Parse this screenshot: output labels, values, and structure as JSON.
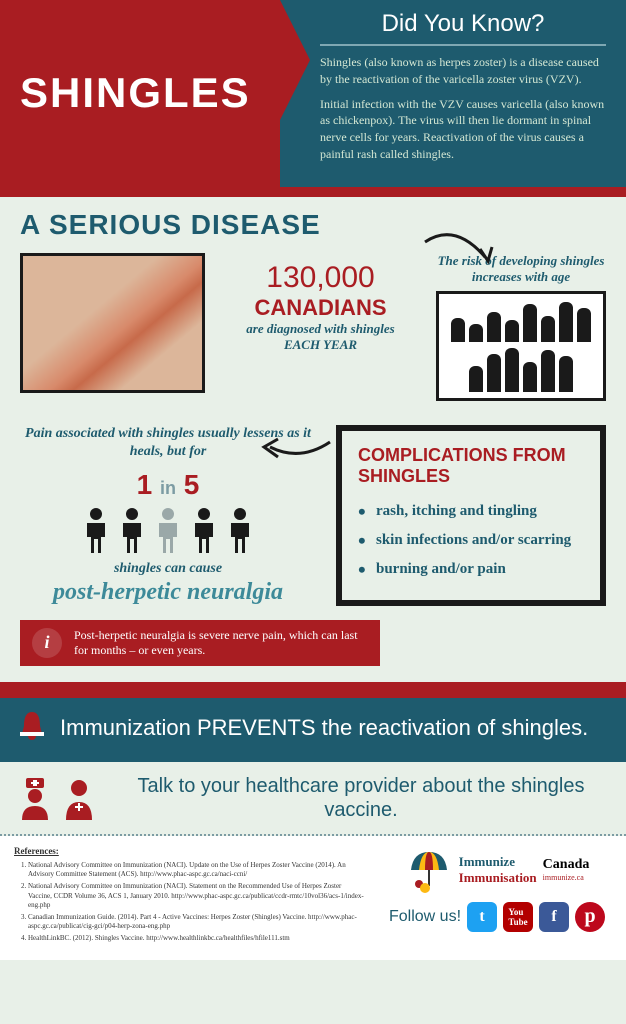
{
  "header": {
    "title": "SHINGLES",
    "did_you_know": "Did You Know?",
    "para1": "Shingles (also known as herpes zoster) is a disease caused by the reactivation of the varicella zoster virus (VZV).",
    "para2": "Initial infection with the VZV causes varicella (also known as chickenpox). The virus will then lie dormant in spinal nerve cells for years. Reactivation of the virus causes a painful rash called shingles."
  },
  "serious": {
    "title": "A Serious Disease",
    "stat_num": "130,000",
    "stat_canadians": "CANADIANS",
    "stat_sub1": "are diagnosed with shingles",
    "stat_sub2": "EACH YEAR",
    "risk_text": "The risk of developing shingles increases with age",
    "pain_text": "Pain associated with shingles usually lessens as it heals, but for",
    "one": "1",
    "in": "in",
    "five": "5",
    "cause": "shingles can cause",
    "neuralgia": "post-herpetic neuralgia",
    "info": "Post-herpetic neuralgia is severe nerve pain, which can last for months – or even years."
  },
  "complications": {
    "title": "Complications from Shingles",
    "items": [
      "rash, itching and tingling",
      "skin infections and/or scarring",
      "burning and/or pain"
    ]
  },
  "immun": "Immunization PREVENTS the reactivation of shingles.",
  "talk": "Talk to your healthcare provider about the shingles vaccine.",
  "refs": {
    "title": "References:",
    "items": [
      "National Advisory Committee on Immunization (NACI). Update on the Use of Herpes Zoster Vaccine (2014). An Advisory Committee Statement (ACS). http://www.phac-aspc.gc.ca/naci-ccni/",
      "National Advisory Committee on Immunization (NACI). Statement on the Recommended Use of Herpes Zoster Vaccine, CCDR Volume 36, ACS 1, January 2010. http://www.phac-aspc.gc.ca/publicat/ccdr-rmtc/10vol36/acs-1/index-eng.php",
      "Canadian Immunization Guide. (2014). Part 4 - Active Vaccines: Herpes Zoster (Shingles) Vaccine. http://www.phac-aspc.gc.ca/publicat/cig-gci/p04-herp-zona-eng.php",
      "HealthLinkBC. (2012). Shingles Vaccine. http://www.healthlinkbc.ca/healthfiles/hfile111.stm"
    ]
  },
  "footer": {
    "immunize_en": "Immunize",
    "immunize_fr": "Immunisation",
    "canada": "Canada",
    "url": "immunize.ca",
    "follow": "Follow us!"
  },
  "colors": {
    "red": "#a91d22",
    "teal": "#1e5b6e",
    "teal_light": "#3d8a99",
    "bg": "#e8f0e8",
    "dark": "#1a1a1a"
  },
  "silhouette_heights": [
    24,
    18,
    30,
    22,
    38,
    26,
    40,
    34,
    26,
    38,
    44,
    30,
    42,
    36
  ]
}
